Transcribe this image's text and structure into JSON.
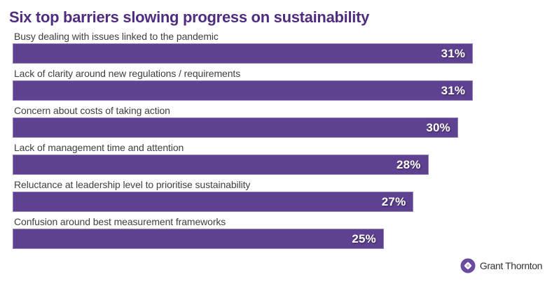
{
  "chart_data": {
    "type": "bar",
    "orientation": "horizontal",
    "title": "Six top barriers slowing progress on sustainability",
    "categories": [
      "Busy dealing with issues linked to the pandemic",
      "Lack of clarity around new regulations / requirements",
      "Concern about costs of taking action",
      "Lack of management time and attention",
      "Reluctance at leadership level to prioritise sustainability",
      "Confusion around best measurement frameworks"
    ],
    "values": [
      31,
      31,
      30,
      28,
      27,
      25
    ],
    "value_labels": [
      "31%",
      "31%",
      "30%",
      "28%",
      "27%",
      "25%"
    ],
    "value_suffix": "%",
    "xlim": [
      0,
      35
    ],
    "grid": false,
    "legend": false,
    "xlabel": "",
    "ylabel": "",
    "colors": {
      "bar": "#5e4190",
      "title": "#4f2d7f",
      "category_label": "#3f3f3f",
      "value_label": "#ffffff",
      "background": "#ffffff"
    }
  },
  "logo": {
    "text": "Grant Thornton",
    "icon": "grant-thornton-orb-icon",
    "colors": {
      "orb": "#6a4b9f",
      "orb_center": "#9d85c4",
      "text": "#333333"
    }
  }
}
